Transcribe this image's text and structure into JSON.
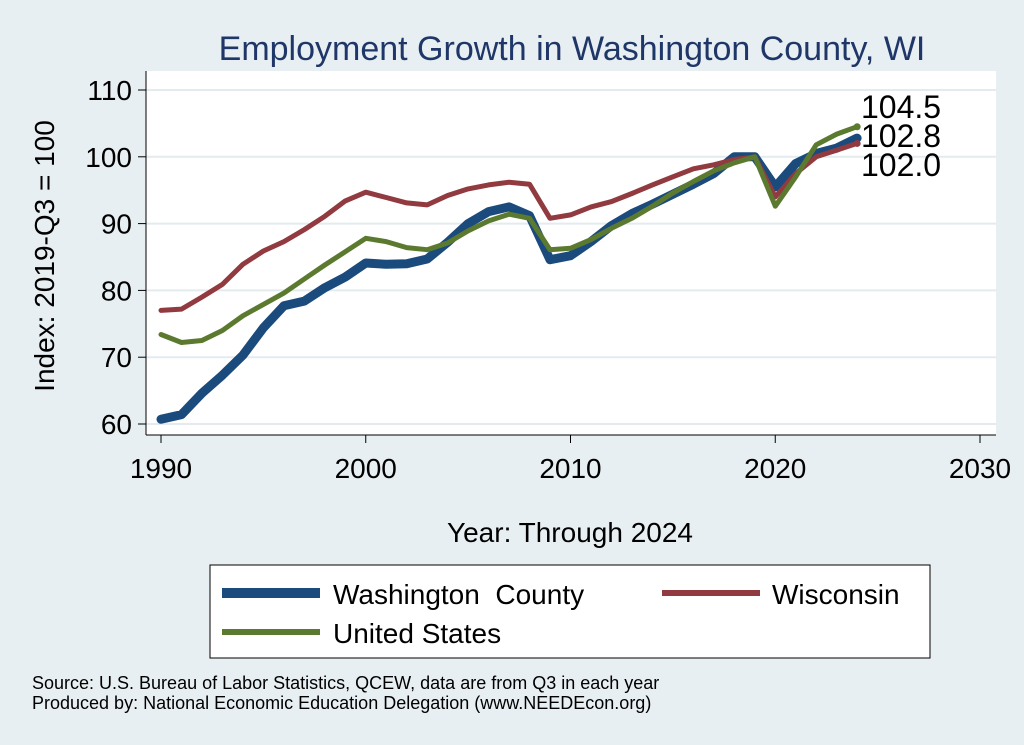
{
  "chart_data": {
    "type": "line",
    "title": "Employment Growth in Washington County, WI",
    "xlabel": "Year: Through 2024",
    "ylabel": "Index: 2019-Q3 = 100",
    "xlim": [
      1990,
      2030
    ],
    "ylim": [
      58,
      112
    ],
    "xticks": [
      1990,
      2000,
      2010,
      2020,
      2030
    ],
    "yticks": [
      60,
      70,
      80,
      90,
      100,
      110
    ],
    "grid": "horizontal",
    "legend_position": "bottom",
    "x": [
      1990,
      1991,
      1992,
      1993,
      1994,
      1995,
      1996,
      1997,
      1998,
      1999,
      2000,
      2001,
      2002,
      2003,
      2004,
      2005,
      2006,
      2007,
      2008,
      2009,
      2010,
      2011,
      2012,
      2013,
      2014,
      2015,
      2016,
      2017,
      2018,
      2019,
      2020,
      2021,
      2022,
      2023,
      2024
    ],
    "series": [
      {
        "name": "Washington  County",
        "color": "#1b4a7c",
        "stroke": "thick",
        "values": [
          60.7,
          61.4,
          64.6,
          67.3,
          70.3,
          74.4,
          77.7,
          78.4,
          80.4,
          82.0,
          84.1,
          83.9,
          84.0,
          84.7,
          87.2,
          90.0,
          91.8,
          92.5,
          91.2,
          84.6,
          85.2,
          87.3,
          89.7,
          91.5,
          92.9,
          94.4,
          95.9,
          97.5,
          100.0,
          100.0,
          95.5,
          99.0,
          100.5,
          101.3,
          102.8
        ]
      },
      {
        "name": "Wisconsin",
        "color": "#913a3f",
        "stroke": "medium",
        "values": [
          77.0,
          77.2,
          79.0,
          80.9,
          83.9,
          85.9,
          87.3,
          89.1,
          91.1,
          93.4,
          94.7,
          93.9,
          93.1,
          92.8,
          94.2,
          95.2,
          95.8,
          96.2,
          95.9,
          90.8,
          91.3,
          92.5,
          93.3,
          94.5,
          95.8,
          97.0,
          98.2,
          98.8,
          99.6,
          100.0,
          94.0,
          97.5,
          100.0,
          101.0,
          102.0
        ]
      },
      {
        "name": "United States",
        "color": "#5c7a2f",
        "stroke": "medium",
        "values": [
          73.4,
          72.2,
          72.5,
          74.0,
          76.2,
          77.9,
          79.6,
          81.7,
          83.8,
          85.8,
          87.8,
          87.3,
          86.4,
          86.1,
          87.1,
          88.9,
          90.4,
          91.4,
          90.8,
          86.1,
          86.3,
          87.6,
          89.3,
          90.8,
          92.6,
          94.6,
          96.3,
          97.9,
          99.1,
          100.0,
          92.6,
          97.0,
          101.8,
          103.4,
          104.5
        ]
      }
    ],
    "end_labels": [
      "104.5",
      "102.8",
      "102.0"
    ],
    "legend": [
      "Washington  County",
      "Wisconsin",
      "United States"
    ]
  },
  "footer": {
    "source": "Source: U.S. Bureau of Labor Statistics, QCEW, data are from Q3 in each year",
    "produced": "Produced by: National Economic Education Delegation (www.NEEDEcon.org)"
  },
  "colors": {
    "background": "#e8eff2",
    "plot_background": "#ffffff",
    "title": "#1f3668",
    "grid": "#e3ebef"
  }
}
